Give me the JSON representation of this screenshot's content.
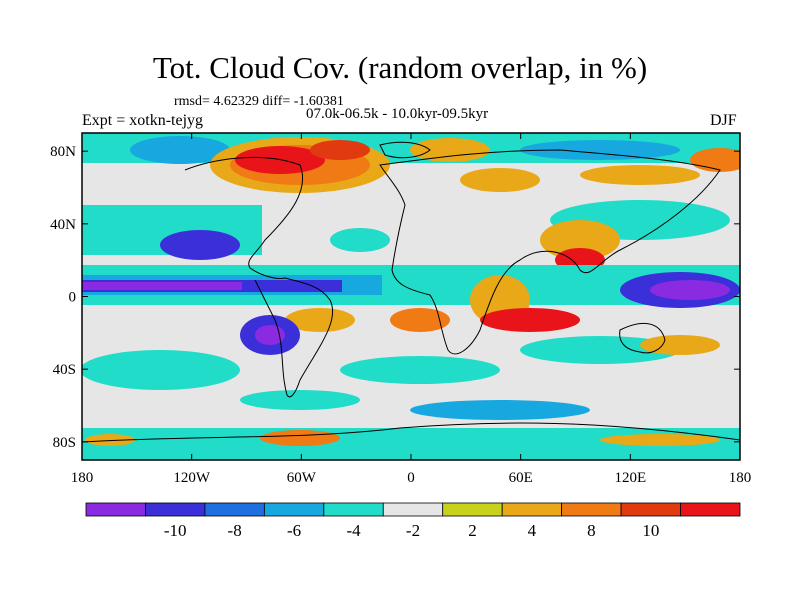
{
  "title": "Tot. Cloud Cov. (random overlap, in %)",
  "stats": "rmsd= 4.62329 diff= -1.60381",
  "period": "07.0k-06.5k - 10.0kyr-09.5kyr",
  "experiment": "Expt = xotkn-tejyg",
  "season": "DJF",
  "map": {
    "lon_range": [
      -180,
      180
    ],
    "lat_range": [
      -90,
      90
    ],
    "x_ticks": [
      {
        "value": -180,
        "label": "180"
      },
      {
        "value": -120,
        "label": "120W"
      },
      {
        "value": -60,
        "label": "60W"
      },
      {
        "value": 0,
        "label": "0"
      },
      {
        "value": 60,
        "label": "60E"
      },
      {
        "value": 120,
        "label": "120E"
      },
      {
        "value": 180,
        "label": "180"
      }
    ],
    "y_ticks": [
      {
        "value": 80,
        "label": "80N"
      },
      {
        "value": 40,
        "label": "40N"
      },
      {
        "value": 0,
        "label": "0"
      },
      {
        "value": -40,
        "label": "40S"
      },
      {
        "value": -80,
        "label": "80S"
      }
    ]
  },
  "colorbar": {
    "colors": [
      "#8a2be2",
      "#3a2fd9",
      "#1f6fe0",
      "#18a8e0",
      "#20dcc8",
      "#e6e6e6",
      "#c8d21c",
      "#e8a818",
      "#f07a14",
      "#e23a10",
      "#e8141a"
    ],
    "labels": [
      "-10",
      "-8",
      "-6",
      "-4",
      "-2",
      "2",
      "4",
      "8",
      "10"
    ]
  }
}
